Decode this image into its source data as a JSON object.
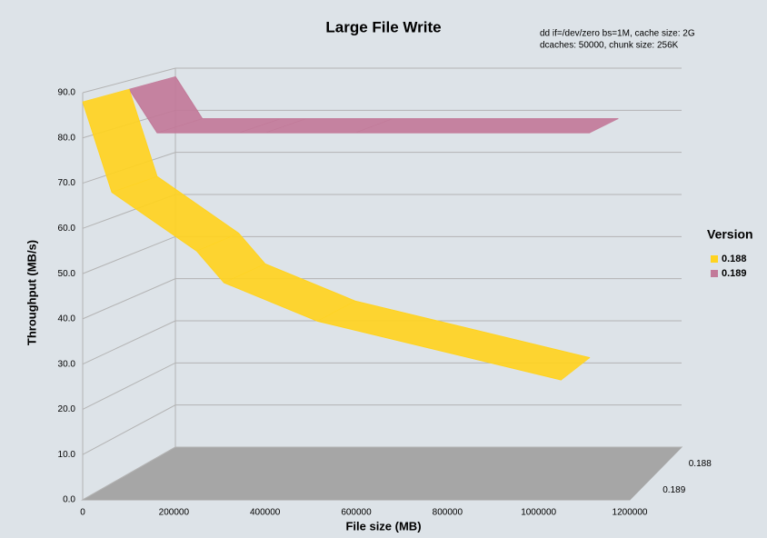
{
  "chart_data": {
    "type": "line",
    "title": "Large File Write",
    "subtitle": [
      "dd if=/dev/zero bs=1M, cache size: 2G",
      "dcaches: 50000, chunk size: 256K"
    ],
    "x_label": "File size (MB)",
    "y_label": "Throughput (MB/s)",
    "legend_title": "Version",
    "x": [
      0,
      64000,
      250000,
      310000,
      515000,
      1050000
    ],
    "series": [
      {
        "name": "0.188",
        "color": "#ffd320",
        "values": [
          88,
          68,
          55,
          48,
          39.5,
          26.5
        ]
      },
      {
        "name": "0.189",
        "color": "#c27a99",
        "values": [
          88,
          78,
          78,
          78,
          78,
          78
        ]
      }
    ],
    "xlim": [
      0,
      1200000
    ],
    "xticks": [
      0,
      200000,
      400000,
      600000,
      800000,
      1000000,
      1200000
    ],
    "ylim": [
      0,
      90
    ],
    "yticks": [
      {
        "value": 0,
        "label": "0.0"
      },
      {
        "value": 10,
        "label": "10.0"
      },
      {
        "value": 20,
        "label": "20.0"
      },
      {
        "value": 30,
        "label": "30.0"
      },
      {
        "value": 40,
        "label": "40.0"
      },
      {
        "value": 50,
        "label": "50.0"
      },
      {
        "value": 60,
        "label": "60.0"
      },
      {
        "value": 70,
        "label": "70.0"
      },
      {
        "value": 80,
        "label": "80.0"
      },
      {
        "value": 90,
        "label": "90.0"
      }
    ],
    "grid": true,
    "legend_position": "right"
  }
}
